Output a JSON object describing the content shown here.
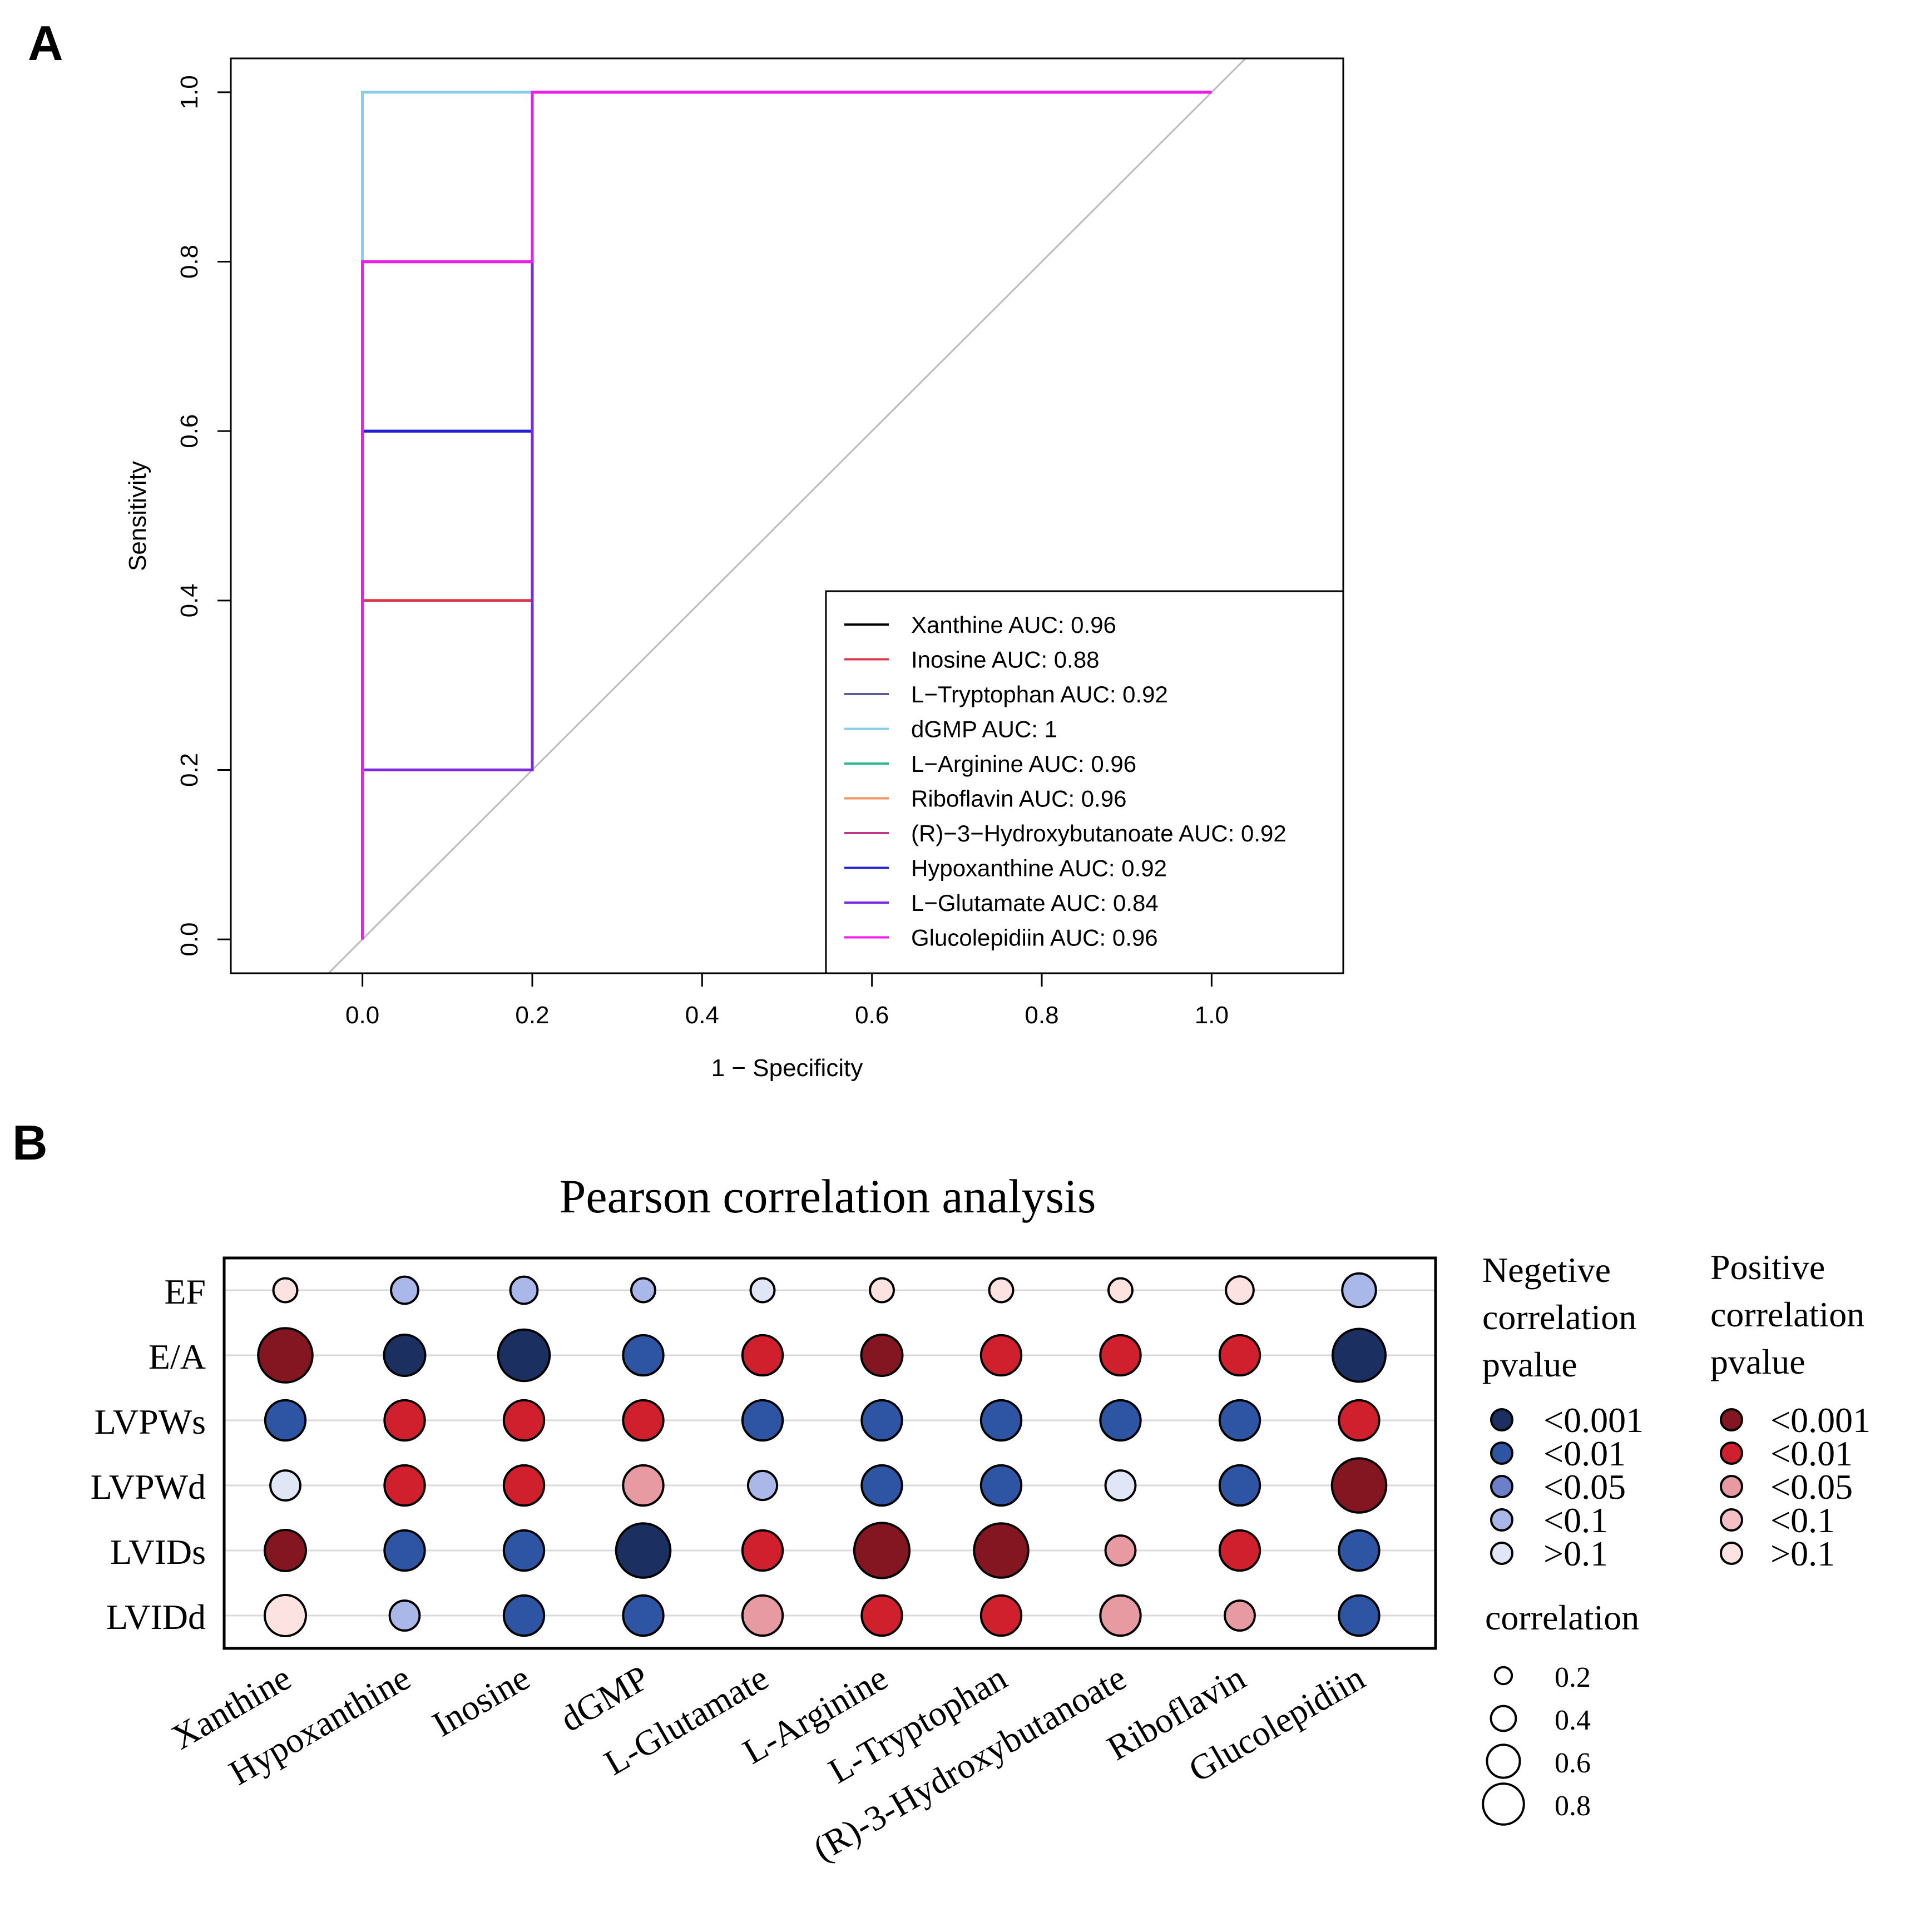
{
  "panels": {
    "a_label": "A",
    "b_label": "B"
  },
  "colors": {
    "neg": [
      "#1b3060",
      "#2e55a4",
      "#6b7fca",
      "#a9b8e8",
      "#e1e6f7"
    ],
    "pos": [
      "#831621",
      "#d01f2d",
      "#e79aa1",
      "#f5c0c5",
      "#fde2e2"
    ],
    "diagonal": "#bbbbbb"
  },
  "chart_data": [
    {
      "type": "line",
      "title": "",
      "xlabel": "1 − Specificity",
      "ylabel": "Sensitivity",
      "xlim": [
        -0.155,
        1.155
      ],
      "ylim": [
        -0.04,
        1.04
      ],
      "xticks": [
        "0.0",
        "0.2",
        "0.4",
        "0.6",
        "0.8",
        "1.0"
      ],
      "yticks": [
        "0.0",
        "0.2",
        "0.4",
        "0.6",
        "0.8",
        "1.0"
      ],
      "legend_position": "bottom-right",
      "series": [
        {
          "name": "Xanthine",
          "label": "Xanthine AUC: 0.96",
          "color": "#000000",
          "auc": 0.96,
          "points": [
            [
              0,
              0
            ],
            [
              0,
              0.8
            ],
            [
              0.2,
              0.8
            ],
            [
              0.2,
              1
            ],
            [
              1,
              1
            ]
          ]
        },
        {
          "name": "Inosine",
          "label": "Inosine AUC: 0.88",
          "color": "#d83a4b",
          "auc": 0.88,
          "points": [
            [
              0,
              0
            ],
            [
              0,
              0.4
            ],
            [
              0.2,
              0.4
            ],
            [
              0.2,
              1
            ],
            [
              1,
              1
            ]
          ]
        },
        {
          "name": "L-Tryptophan",
          "label": "L−Tryptophan AUC: 0.92",
          "color": "#5b5b9c",
          "auc": 0.92,
          "points": [
            [
              0,
              0
            ],
            [
              0,
              0.6
            ],
            [
              0.2,
              0.6
            ],
            [
              0.2,
              1
            ],
            [
              1,
              1
            ]
          ]
        },
        {
          "name": "dGMP",
          "label": "dGMP AUC: 1",
          "color": "#86cdec",
          "auc": 1,
          "points": [
            [
              0,
              0
            ],
            [
              0,
              1
            ],
            [
              1,
              1
            ]
          ]
        },
        {
          "name": "L-Arginine",
          "label": "L−Arginine AUC: 0.96",
          "color": "#2fb58c",
          "auc": 0.96,
          "points": [
            [
              0,
              0
            ],
            [
              0,
              0.8
            ],
            [
              0.2,
              0.8
            ],
            [
              0.2,
              1
            ],
            [
              1,
              1
            ]
          ]
        },
        {
          "name": "Riboflavin",
          "label": "Riboflavin AUC: 0.96",
          "color": "#ef9360",
          "auc": 0.96,
          "points": [
            [
              0,
              0
            ],
            [
              0,
              0.8
            ],
            [
              0.2,
              0.8
            ],
            [
              0.2,
              1
            ],
            [
              1,
              1
            ]
          ]
        },
        {
          "name": "(R)-3-Hydroxybutanoate",
          "label": "(R)−3−Hydroxybutanoate AUC: 0.92",
          "color": "#c2378a",
          "auc": 0.92,
          "points": [
            [
              0,
              0
            ],
            [
              0,
              0.6
            ],
            [
              0.2,
              0.6
            ],
            [
              0.2,
              1
            ],
            [
              1,
              1
            ]
          ]
        },
        {
          "name": "Hypoxanthine",
          "label": "Hypoxanthine AUC: 0.92",
          "color": "#1f1fd6",
          "auc": 0.92,
          "points": [
            [
              0,
              0
            ],
            [
              0,
              0.6
            ],
            [
              0.2,
              0.6
            ],
            [
              0.2,
              1
            ],
            [
              1,
              1
            ]
          ]
        },
        {
          "name": "L-Glutamate",
          "label": "L−Glutamate AUC: 0.84",
          "color": "#7a2be2",
          "auc": 0.84,
          "points": [
            [
              0,
              0
            ],
            [
              0,
              0.2
            ],
            [
              0.2,
              0.2
            ],
            [
              0.2,
              1
            ],
            [
              1,
              1
            ]
          ]
        },
        {
          "name": "Glucolepidiin",
          "label": "Glucolepidiin AUC: 0.96",
          "color": "#ee1ced",
          "auc": 0.96,
          "points": [
            [
              0,
              0
            ],
            [
              0,
              0.8
            ],
            [
              0.2,
              0.8
            ],
            [
              0.2,
              1
            ],
            [
              1,
              1
            ]
          ]
        }
      ]
    },
    {
      "type": "scatter",
      "subtype": "bubble-correlation-matrix",
      "title": "Pearson correlation analysis",
      "rows": [
        "EF",
        "E/A",
        "LVPWs",
        "LVPWd",
        "LVIDs",
        "LVIDd"
      ],
      "columns": [
        "Xanthine",
        "Hypoxanthine",
        "Inosine",
        "dGMP",
        "L-Glutamate",
        "L-Arginine",
        "L-Tryptophan",
        "(R)-3-Hydroxybutanoate",
        "Riboflavin",
        "Glucolepidiin"
      ],
      "cells": [
        [
          {
            "r": 0.13,
            "p": 4
          },
          {
            "r": -0.2,
            "p": 3
          },
          {
            "r": -0.2,
            "p": 3
          },
          {
            "r": -0.13,
            "p": 3
          },
          {
            "r": -0.13,
            "p": 4
          },
          {
            "r": 0.13,
            "p": 4
          },
          {
            "r": 0.13,
            "p": 4
          },
          {
            "r": 0.13,
            "p": 4
          },
          {
            "r": 0.21,
            "p": 4
          },
          {
            "r": -0.34,
            "p": 3
          }
        ],
        [
          {
            "r": 0.78,
            "p": 0
          },
          {
            "r": -0.5,
            "p": 0
          },
          {
            "r": -0.72,
            "p": 0
          },
          {
            "r": -0.48,
            "p": 1
          },
          {
            "r": 0.48,
            "p": 1
          },
          {
            "r": 0.5,
            "p": 0
          },
          {
            "r": 0.48,
            "p": 1
          },
          {
            "r": 0.48,
            "p": 1
          },
          {
            "r": 0.48,
            "p": 1
          },
          {
            "r": -0.75,
            "p": 0
          }
        ],
        [
          {
            "r": -0.48,
            "p": 1
          },
          {
            "r": 0.48,
            "p": 1
          },
          {
            "r": 0.48,
            "p": 1
          },
          {
            "r": 0.48,
            "p": 1
          },
          {
            "r": -0.48,
            "p": 1
          },
          {
            "r": -0.48,
            "p": 1
          },
          {
            "r": -0.48,
            "p": 1
          },
          {
            "r": -0.48,
            "p": 1
          },
          {
            "r": -0.48,
            "p": 1
          },
          {
            "r": 0.48,
            "p": 1
          }
        ],
        [
          {
            "r": -0.26,
            "p": 4
          },
          {
            "r": 0.48,
            "p": 1
          },
          {
            "r": 0.48,
            "p": 1
          },
          {
            "r": 0.48,
            "p": 2
          },
          {
            "r": -0.24,
            "p": 3
          },
          {
            "r": -0.48,
            "p": 1
          },
          {
            "r": -0.48,
            "p": 1
          },
          {
            "r": -0.26,
            "p": 4
          },
          {
            "r": -0.48,
            "p": 1
          },
          {
            "r": 0.78,
            "p": 0
          }
        ],
        [
          {
            "r": 0.5,
            "p": 0
          },
          {
            "r": -0.48,
            "p": 1
          },
          {
            "r": -0.48,
            "p": 1
          },
          {
            "r": -0.78,
            "p": 0
          },
          {
            "r": 0.48,
            "p": 1
          },
          {
            "r": 0.8,
            "p": 0
          },
          {
            "r": 0.78,
            "p": 0
          },
          {
            "r": 0.26,
            "p": 2
          },
          {
            "r": 0.48,
            "p": 1
          },
          {
            "r": -0.48,
            "p": 1
          }
        ],
        [
          {
            "r": 0.5,
            "p": 4
          },
          {
            "r": -0.26,
            "p": 3
          },
          {
            "r": -0.48,
            "p": 1
          },
          {
            "r": -0.48,
            "p": 1
          },
          {
            "r": 0.48,
            "p": 2
          },
          {
            "r": 0.48,
            "p": 1
          },
          {
            "r": 0.48,
            "p": 1
          },
          {
            "r": 0.48,
            "p": 2
          },
          {
            "r": 0.26,
            "p": 2
          },
          {
            "r": -0.48,
            "p": 1
          }
        ]
      ],
      "legend": {
        "neg_title": [
          "Negetive",
          "correlation",
          "pvalue"
        ],
        "pos_title": [
          "Positive",
          "correlation",
          "pvalue"
        ],
        "p_labels": [
          "<0.001",
          "<0.01",
          "<0.05",
          "<0.1",
          ">0.1"
        ],
        "size_title": "correlation",
        "size_values": [
          0.2,
          0.4,
          0.6,
          0.8
        ],
        "size_labels": [
          "0.2",
          "0.4",
          "0.6",
          "0.8"
        ]
      }
    }
  ]
}
